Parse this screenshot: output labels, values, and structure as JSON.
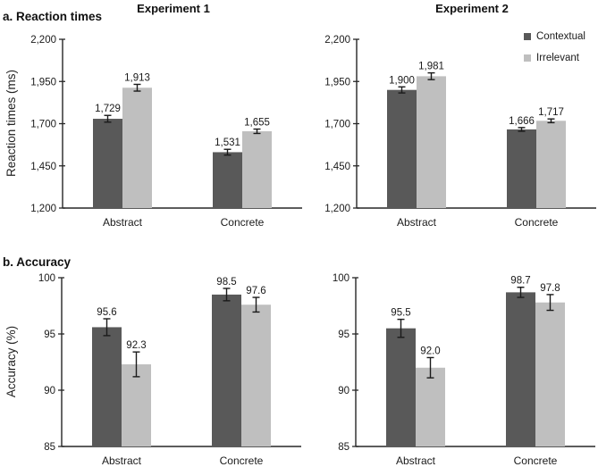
{
  "figure": {
    "section_a_label": "a. Reaction times",
    "section_b_label": "b. Accuracy",
    "column1_title": "Experiment 1",
    "column2_title": "Experiment 2",
    "rt_axis_title": "Reaction times (ms)",
    "acc_axis_title": "Accuracy (%)"
  },
  "legend": {
    "position": "top-right of Experiment 2 reaction-time panel",
    "items": [
      {
        "label": "Contextual",
        "color": "#595959"
      },
      {
        "label": "Irrelevant",
        "color": "#bfbfbf"
      }
    ]
  },
  "colors": {
    "bar_dark": "#595959",
    "bar_light": "#bfbfbf",
    "axis": "#262626",
    "error_bar": "#1a1a1a",
    "text": "#1a1a1a",
    "background": "#ffffff"
  },
  "chart_data": [
    {
      "id": "exp1-reaction-times",
      "type": "bar",
      "experiment": "Experiment 1",
      "measure": "Reaction times",
      "ylabel": "Reaction times (ms)",
      "categories": [
        "Abstract",
        "Concrete"
      ],
      "series": [
        {
          "name": "Contextual",
          "values": [
            1729,
            1531
          ],
          "labels": [
            "1,729",
            "1,531"
          ],
          "errors": [
            20,
            17
          ]
        },
        {
          "name": "Irrelevant",
          "values": [
            1913,
            1655
          ],
          "labels": [
            "1,913",
            "1,655"
          ],
          "errors": [
            20,
            13
          ]
        }
      ],
      "ylim": [
        1200,
        2200
      ],
      "yticks": [
        1200,
        1450,
        1700,
        1950,
        2200
      ],
      "ytick_labels": [
        "1,200",
        "1,450",
        "1,700",
        "1,950",
        "2,200"
      ],
      "grid": false,
      "error_bars": true
    },
    {
      "id": "exp2-reaction-times",
      "type": "bar",
      "experiment": "Experiment 2",
      "measure": "Reaction times",
      "ylabel": "Reaction times (ms)",
      "categories": [
        "Abstract",
        "Concrete"
      ],
      "series": [
        {
          "name": "Contextual",
          "values": [
            1900,
            1666
          ],
          "labels": [
            "1,900",
            "1,666"
          ],
          "errors": [
            18,
            11
          ]
        },
        {
          "name": "Irrelevant",
          "values": [
            1981,
            1717
          ],
          "labels": [
            "1,981",
            "1,717"
          ],
          "errors": [
            20,
            11
          ]
        }
      ],
      "ylim": [
        1200,
        2200
      ],
      "yticks": [
        1200,
        1450,
        1700,
        1950,
        2200
      ],
      "ytick_labels": [
        "1,200",
        "1,450",
        "1,700",
        "1,950",
        "2,200"
      ],
      "grid": false,
      "error_bars": true,
      "legend_position": "top-right"
    },
    {
      "id": "exp1-accuracy",
      "type": "bar",
      "experiment": "Experiment 1",
      "measure": "Accuracy",
      "ylabel": "Accuracy (%)",
      "categories": [
        "Abstract",
        "Concrete"
      ],
      "series": [
        {
          "name": "Contextual",
          "values": [
            95.6,
            98.5
          ],
          "labels": [
            "95.6",
            "98.5"
          ],
          "errors": [
            0.75,
            0.55
          ]
        },
        {
          "name": "Irrelevant",
          "values": [
            92.3,
            97.6
          ],
          "labels": [
            "92.3",
            "97.6"
          ],
          "errors": [
            1.1,
            0.65
          ]
        }
      ],
      "ylim": [
        85,
        100
      ],
      "yticks": [
        85,
        90,
        95,
        100
      ],
      "ytick_labels": [
        "85",
        "90",
        "95",
        "100"
      ],
      "grid": false,
      "error_bars": true
    },
    {
      "id": "exp2-accuracy",
      "type": "bar",
      "experiment": "Experiment 2",
      "measure": "Accuracy",
      "ylabel": "Accuracy (%)",
      "categories": [
        "Abstract",
        "Concrete"
      ],
      "series": [
        {
          "name": "Contextual",
          "values": [
            95.5,
            98.7
          ],
          "labels": [
            "95.5",
            "98.7"
          ],
          "errors": [
            0.8,
            0.45
          ]
        },
        {
          "name": "Irrelevant",
          "values": [
            92.0,
            97.8
          ],
          "labels": [
            "92.0",
            "97.8"
          ],
          "errors": [
            0.9,
            0.7
          ]
        }
      ],
      "ylim": [
        85,
        100
      ],
      "yticks": [
        85,
        90,
        95,
        100
      ],
      "ytick_labels": [
        "85",
        "90",
        "95",
        "100"
      ],
      "grid": false,
      "error_bars": true
    }
  ]
}
